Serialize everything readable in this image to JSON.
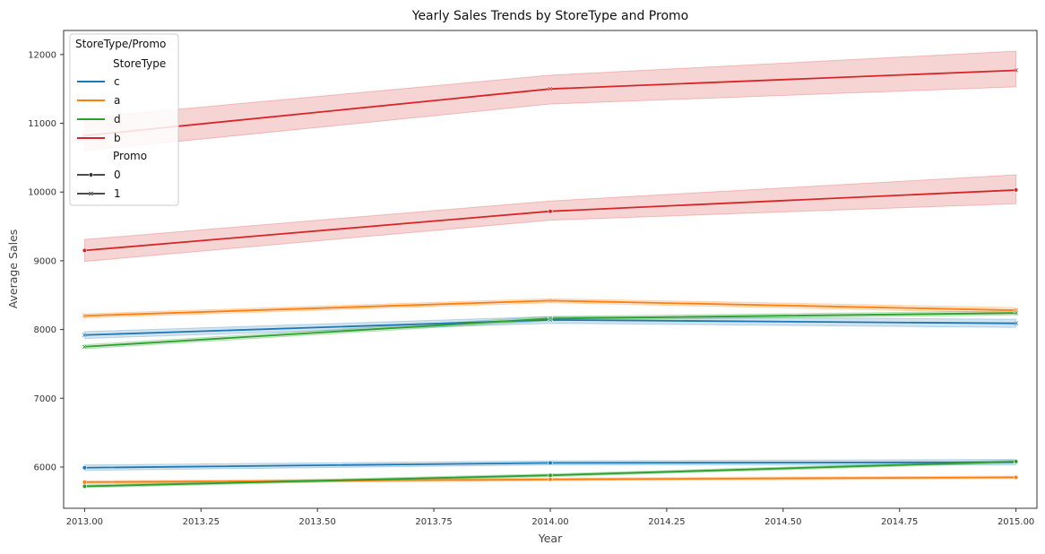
{
  "chart_data": {
    "type": "line",
    "title": "Yearly Sales Trends by StoreType and Promo",
    "xlabel": "Year",
    "ylabel": "Average Sales",
    "xlim": [
      2012.955,
      2015.045
    ],
    "ylim": [
      5400,
      12350
    ],
    "xticks": [
      2013.0,
      2013.25,
      2013.5,
      2013.75,
      2014.0,
      2014.25,
      2014.5,
      2014.75,
      2015.0
    ],
    "xtick_labels": [
      "2013.00",
      "2013.25",
      "2013.50",
      "2013.75",
      "2014.00",
      "2014.25",
      "2014.50",
      "2014.75",
      "2015.00"
    ],
    "yticks": [
      6000,
      7000,
      8000,
      9000,
      10000,
      11000,
      12000
    ],
    "ytick_labels": [
      "6000",
      "7000",
      "8000",
      "9000",
      "10000",
      "11000",
      "12000"
    ],
    "grid": false,
    "legend": {
      "title": "StoreType/Promo",
      "placement": "top-left",
      "hue_header": "StoreType",
      "style_header": "Promo",
      "hue_entries": [
        {
          "label": "c",
          "color": "#1f77b4"
        },
        {
          "label": "a",
          "color": "#ff7f0e"
        },
        {
          "label": "d",
          "color": "#2ca02c"
        },
        {
          "label": "b",
          "color": "#d62728"
        }
      ],
      "style_entries": [
        {
          "label": "0",
          "marker": "dot"
        },
        {
          "label": "1",
          "marker": "x"
        }
      ]
    },
    "x": [
      2013,
      2014,
      2015
    ],
    "series": [
      {
        "storetype": "b",
        "promo": "0",
        "color": "#d62728",
        "values": [
          9150,
          9720,
          10030
        ],
        "ci_low": [
          8990,
          9590,
          9830
        ],
        "ci_high": [
          9310,
          9870,
          10250
        ]
      },
      {
        "storetype": "b",
        "promo": "1",
        "color": "#d62728",
        "values": [
          10820,
          11500,
          11770
        ],
        "ci_low": [
          10600,
          11280,
          11530
        ],
        "ci_high": [
          11080,
          11700,
          12050
        ]
      },
      {
        "storetype": "a",
        "promo": "0",
        "color": "#ff7f0e",
        "values": [
          5780,
          5820,
          5850
        ],
        "ci_low": [
          5760,
          5800,
          5830
        ],
        "ci_high": [
          5800,
          5840,
          5870
        ]
      },
      {
        "storetype": "a",
        "promo": "1",
        "color": "#ff7f0e",
        "values": [
          8200,
          8420,
          8280
        ],
        "ci_low": [
          8170,
          8390,
          8240
        ],
        "ci_high": [
          8230,
          8450,
          8320
        ]
      },
      {
        "storetype": "c",
        "promo": "0",
        "color": "#1f77b4",
        "values": [
          5990,
          6060,
          6070
        ],
        "ci_low": [
          5950,
          6030,
          6030
        ],
        "ci_high": [
          6030,
          6090,
          6110
        ]
      },
      {
        "storetype": "c",
        "promo": "1",
        "color": "#1f77b4",
        "values": [
          7920,
          8140,
          8090
        ],
        "ci_low": [
          7870,
          8090,
          8030
        ],
        "ci_high": [
          7970,
          8190,
          8150
        ]
      },
      {
        "storetype": "d",
        "promo": "0",
        "color": "#2ca02c",
        "values": [
          5720,
          5880,
          6080
        ],
        "ci_low": [
          5700,
          5860,
          6060
        ],
        "ci_high": [
          5740,
          5900,
          6100
        ]
      },
      {
        "storetype": "d",
        "promo": "1",
        "color": "#2ca02c",
        "values": [
          7750,
          8160,
          8240
        ],
        "ci_low": [
          7720,
          8130,
          8210
        ],
        "ci_high": [
          7780,
          8190,
          8270
        ]
      }
    ]
  }
}
